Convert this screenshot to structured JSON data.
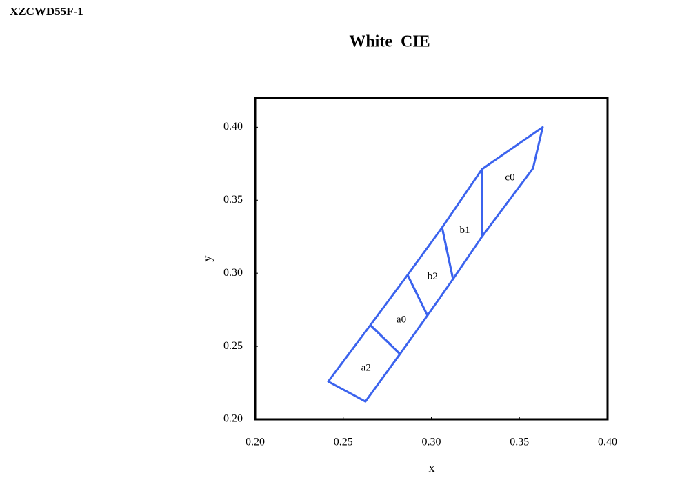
{
  "header": "XZCWD55F-1",
  "chart_data": {
    "type": "polygon",
    "title": "White  CIE",
    "x_label": "x",
    "y_label": "y",
    "color": "#3b63ee",
    "xlim": [
      0.2,
      0.4
    ],
    "ylim": [
      0.2,
      0.42
    ],
    "xticks": [
      {
        "value": 0.2,
        "label": "0.20"
      },
      0.25,
      {
        "value": 0.3,
        "label": "0.30"
      },
      0.35,
      {
        "value": 0.4,
        "label": "0.40"
      }
    ],
    "yticks": [
      {
        "value": 0.2,
        "label": "0.20"
      },
      0.25,
      {
        "value": 0.3,
        "label": "0.30"
      },
      0.35,
      {
        "value": 0.4,
        "label": "0.40"
      }
    ],
    "series": [
      {
        "name": "a2",
        "x": [
          0.2415,
          0.2626,
          0.2822,
          0.2654
        ],
        "y": [
          0.2259,
          0.2122,
          0.2447,
          0.2645
        ]
      },
      {
        "name": "a0",
        "x": [
          0.2654,
          0.2822,
          0.2978,
          0.2865
        ],
        "y": [
          0.2645,
          0.2447,
          0.2711,
          0.2988
        ]
      },
      {
        "name": "b2",
        "x": [
          0.2865,
          0.2978,
          0.3123,
          0.3061
        ],
        "y": [
          0.2988,
          0.2711,
          0.296,
          0.3313
        ]
      },
      {
        "name": "b1",
        "x": [
          0.3061,
          0.3123,
          0.3288,
          0.3288
        ],
        "y": [
          0.3313,
          0.296,
          0.3252,
          0.3713
        ]
      },
      {
        "name": "c0",
        "x": [
          0.3288,
          0.3288,
          0.3577,
          0.3632
        ],
        "y": [
          0.3713,
          0.3252,
          0.3718,
          0.4
        ]
      }
    ]
  }
}
